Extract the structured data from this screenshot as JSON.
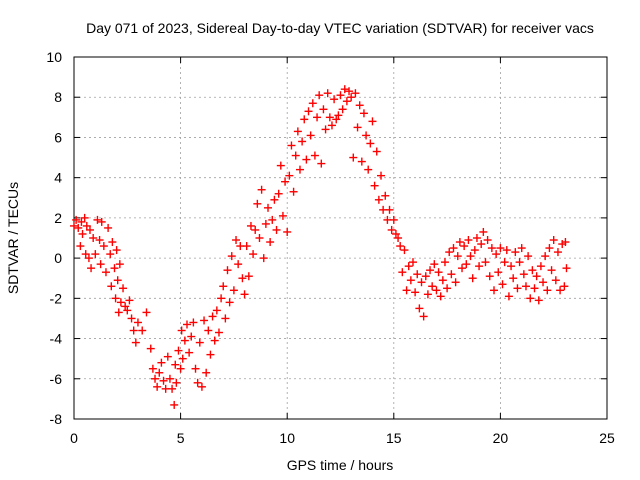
{
  "chart_data": {
    "type": "scatter",
    "title": "Day 071 of 2023, Sidereal Day-to-day VTEC variation (SDTVAR) for receiver vacs",
    "xlabel": "GPS time / hours",
    "ylabel": "SDTVAR / TECUs",
    "xlim": [
      0,
      25
    ],
    "ylim": [
      -8,
      10
    ],
    "xticks": [
      0,
      5,
      10,
      15,
      20,
      25
    ],
    "yticks": [
      -8,
      -6,
      -4,
      -2,
      0,
      2,
      4,
      6,
      8,
      10
    ],
    "grid": true,
    "marker": "+",
    "color": "#ff0000",
    "series": [
      {
        "name": "SDTVAR",
        "points": [
          [
            0.0,
            1.6
          ],
          [
            0.1,
            1.9
          ],
          [
            0.2,
            1.5
          ],
          [
            0.3,
            0.6
          ],
          [
            0.35,
            1.8
          ],
          [
            0.4,
            1.2
          ],
          [
            0.5,
            2.0
          ],
          [
            0.55,
            0.2
          ],
          [
            0.6,
            1.6
          ],
          [
            0.7,
            0.0
          ],
          [
            0.75,
            1.4
          ],
          [
            0.8,
            -0.5
          ],
          [
            0.9,
            1.0
          ],
          [
            1.0,
            0.2
          ],
          [
            1.1,
            1.9
          ],
          [
            1.2,
            0.9
          ],
          [
            1.25,
            -0.3
          ],
          [
            1.3,
            1.8
          ],
          [
            1.4,
            0.6
          ],
          [
            1.5,
            -0.7
          ],
          [
            1.6,
            1.5
          ],
          [
            1.7,
            0.2
          ],
          [
            1.75,
            -1.4
          ],
          [
            1.8,
            0.8
          ],
          [
            1.9,
            -0.5
          ],
          [
            1.95,
            -2.0
          ],
          [
            2.0,
            0.4
          ],
          [
            2.05,
            -1.1
          ],
          [
            2.1,
            -2.7
          ],
          [
            2.15,
            -0.3
          ],
          [
            2.2,
            -2.2
          ],
          [
            2.3,
            -1.5
          ],
          [
            2.4,
            -2.4
          ],
          [
            2.5,
            -2.6
          ],
          [
            2.6,
            -2.1
          ],
          [
            2.7,
            -3.0
          ],
          [
            2.8,
            -3.6
          ],
          [
            2.9,
            -4.2
          ],
          [
            3.0,
            -3.2
          ],
          [
            3.2,
            -3.6
          ],
          [
            3.4,
            -2.7
          ],
          [
            3.6,
            -4.5
          ],
          [
            3.7,
            -5.5
          ],
          [
            3.8,
            -6.0
          ],
          [
            3.9,
            -6.4
          ],
          [
            4.0,
            -5.7
          ],
          [
            4.1,
            -5.2
          ],
          [
            4.2,
            -6.1
          ],
          [
            4.3,
            -6.5
          ],
          [
            4.4,
            -4.9
          ],
          [
            4.5,
            -6.0
          ],
          [
            4.6,
            -6.5
          ],
          [
            4.7,
            -7.3
          ],
          [
            4.75,
            -5.3
          ],
          [
            4.8,
            -6.2
          ],
          [
            4.9,
            -4.6
          ],
          [
            5.0,
            -5.5
          ],
          [
            5.05,
            -3.6
          ],
          [
            5.1,
            -5.0
          ],
          [
            5.2,
            -4.1
          ],
          [
            5.3,
            -3.3
          ],
          [
            5.4,
            -4.7
          ],
          [
            5.5,
            -3.9
          ],
          [
            5.6,
            -3.2
          ],
          [
            5.7,
            -5.5
          ],
          [
            5.8,
            -6.2
          ],
          [
            5.9,
            -4.2
          ],
          [
            6.0,
            -6.4
          ],
          [
            6.1,
            -3.1
          ],
          [
            6.2,
            -5.7
          ],
          [
            6.3,
            -3.6
          ],
          [
            6.4,
            -4.8
          ],
          [
            6.5,
            -2.9
          ],
          [
            6.6,
            -4.1
          ],
          [
            6.7,
            -2.6
          ],
          [
            6.8,
            -3.7
          ],
          [
            6.9,
            -2.0
          ],
          [
            7.0,
            -1.4
          ],
          [
            7.1,
            -3.0
          ],
          [
            7.2,
            -0.6
          ],
          [
            7.3,
            -2.2
          ],
          [
            7.4,
            0.1
          ],
          [
            7.5,
            -1.6
          ],
          [
            7.6,
            0.9
          ],
          [
            7.7,
            -0.3
          ],
          [
            7.8,
            0.6
          ],
          [
            7.9,
            -1.0
          ],
          [
            8.0,
            -1.8
          ],
          [
            8.1,
            0.6
          ],
          [
            8.2,
            -0.9
          ],
          [
            8.3,
            1.6
          ],
          [
            8.4,
            0.2
          ],
          [
            8.5,
            1.4
          ],
          [
            8.6,
            2.7
          ],
          [
            8.7,
            1.0
          ],
          [
            8.8,
            3.4
          ],
          [
            8.9,
            0.0
          ],
          [
            9.0,
            1.7
          ],
          [
            9.1,
            2.5
          ],
          [
            9.2,
            0.8
          ],
          [
            9.3,
            1.9
          ],
          [
            9.4,
            2.9
          ],
          [
            9.5,
            1.4
          ],
          [
            9.6,
            3.2
          ],
          [
            9.7,
            4.6
          ],
          [
            9.8,
            2.1
          ],
          [
            9.9,
            3.8
          ],
          [
            10.0,
            1.3
          ],
          [
            10.1,
            4.1
          ],
          [
            10.2,
            5.6
          ],
          [
            10.3,
            3.3
          ],
          [
            10.4,
            5.1
          ],
          [
            10.5,
            6.3
          ],
          [
            10.6,
            4.4
          ],
          [
            10.7,
            5.8
          ],
          [
            10.8,
            6.9
          ],
          [
            10.9,
            4.9
          ],
          [
            11.0,
            7.3
          ],
          [
            11.1,
            6.1
          ],
          [
            11.2,
            7.7
          ],
          [
            11.3,
            5.1
          ],
          [
            11.4,
            7.0
          ],
          [
            11.5,
            8.1
          ],
          [
            11.6,
            4.7
          ],
          [
            11.7,
            7.4
          ],
          [
            11.8,
            6.4
          ],
          [
            11.9,
            8.2
          ],
          [
            12.0,
            7.0
          ],
          [
            12.1,
            6.6
          ],
          [
            12.2,
            7.9
          ],
          [
            12.3,
            6.9
          ],
          [
            12.4,
            7.1
          ],
          [
            12.5,
            8.1
          ],
          [
            12.6,
            7.4
          ],
          [
            12.7,
            8.4
          ],
          [
            12.8,
            7.8
          ],
          [
            12.9,
            8.3
          ],
          [
            13.0,
            8.0
          ],
          [
            13.1,
            5.0
          ],
          [
            13.2,
            8.2
          ],
          [
            13.3,
            6.5
          ],
          [
            13.4,
            7.6
          ],
          [
            13.5,
            4.8
          ],
          [
            13.6,
            7.2
          ],
          [
            13.7,
            6.1
          ],
          [
            13.8,
            4.4
          ],
          [
            13.9,
            5.7
          ],
          [
            14.0,
            6.8
          ],
          [
            14.1,
            3.6
          ],
          [
            14.2,
            5.3
          ],
          [
            14.3,
            2.9
          ],
          [
            14.4,
            4.1
          ],
          [
            14.5,
            2.4
          ],
          [
            14.6,
            3.1
          ],
          [
            14.7,
            1.9
          ],
          [
            14.8,
            2.4
          ],
          [
            14.9,
            1.4
          ],
          [
            15.0,
            1.9
          ],
          [
            15.1,
            1.2
          ],
          [
            15.2,
            1.0
          ],
          [
            15.3,
            0.6
          ],
          [
            15.4,
            -0.7
          ],
          [
            15.5,
            0.4
          ],
          [
            15.6,
            -1.6
          ],
          [
            15.7,
            -0.4
          ],
          [
            15.8,
            -1.1
          ],
          [
            15.9,
            -0.2
          ],
          [
            16.0,
            -1.7
          ],
          [
            16.1,
            -0.8
          ],
          [
            16.2,
            -2.5
          ],
          [
            16.3,
            -1.2
          ],
          [
            16.4,
            -2.9
          ],
          [
            16.5,
            -0.9
          ],
          [
            16.6,
            -1.8
          ],
          [
            16.7,
            -0.6
          ],
          [
            16.8,
            -1.4
          ],
          [
            16.9,
            -0.3
          ],
          [
            17.0,
            -1.6
          ],
          [
            17.1,
            -0.7
          ],
          [
            17.2,
            -1.9
          ],
          [
            17.3,
            -1.1
          ],
          [
            17.4,
            -0.2
          ],
          [
            17.5,
            -1.5
          ],
          [
            17.6,
            0.3
          ],
          [
            17.7,
            -0.8
          ],
          [
            17.8,
            0.5
          ],
          [
            17.9,
            -1.2
          ],
          [
            18.0,
            0.1
          ],
          [
            18.1,
            0.8
          ],
          [
            18.2,
            -0.5
          ],
          [
            18.3,
            0.6
          ],
          [
            18.4,
            -0.3
          ],
          [
            18.5,
            0.9
          ],
          [
            18.6,
            0.1
          ],
          [
            18.7,
            -1.0
          ],
          [
            18.8,
            0.4
          ],
          [
            18.9,
            1.0
          ],
          [
            19.0,
            -0.4
          ],
          [
            19.1,
            0.7
          ],
          [
            19.2,
            1.3
          ],
          [
            19.3,
            -0.2
          ],
          [
            19.4,
            0.9
          ],
          [
            19.5,
            -0.9
          ],
          [
            19.6,
            0.5
          ],
          [
            19.7,
            -1.6
          ],
          [
            19.8,
            0.2
          ],
          [
            19.9,
            -0.7
          ],
          [
            20.0,
            0.5
          ],
          [
            20.1,
            -1.3
          ],
          [
            20.2,
            -0.2
          ],
          [
            20.3,
            0.4
          ],
          [
            20.4,
            -1.9
          ],
          [
            20.5,
            -0.4
          ],
          [
            20.6,
            -1.0
          ],
          [
            20.7,
            0.3
          ],
          [
            20.8,
            -1.5
          ],
          [
            20.9,
            -0.2
          ],
          [
            21.0,
            0.5
          ],
          [
            21.1,
            -0.8
          ],
          [
            21.2,
            -1.4
          ],
          [
            21.3,
            0.1
          ],
          [
            21.4,
            -2.0
          ],
          [
            21.5,
            -0.6
          ],
          [
            21.6,
            -1.5
          ],
          [
            21.7,
            -0.9
          ],
          [
            21.8,
            -2.1
          ],
          [
            21.9,
            -0.4
          ],
          [
            22.0,
            -1.2
          ],
          [
            22.1,
            0.1
          ],
          [
            22.2,
            -1.6
          ],
          [
            22.3,
            0.5
          ],
          [
            22.4,
            -0.6
          ],
          [
            22.5,
            0.9
          ],
          [
            22.6,
            -1.1
          ],
          [
            22.7,
            0.3
          ],
          [
            22.8,
            -1.6
          ],
          [
            22.9,
            0.7
          ],
          [
            23.0,
            -1.4
          ],
          [
            23.05,
            0.8
          ],
          [
            23.1,
            -0.5
          ]
        ]
      }
    ]
  }
}
